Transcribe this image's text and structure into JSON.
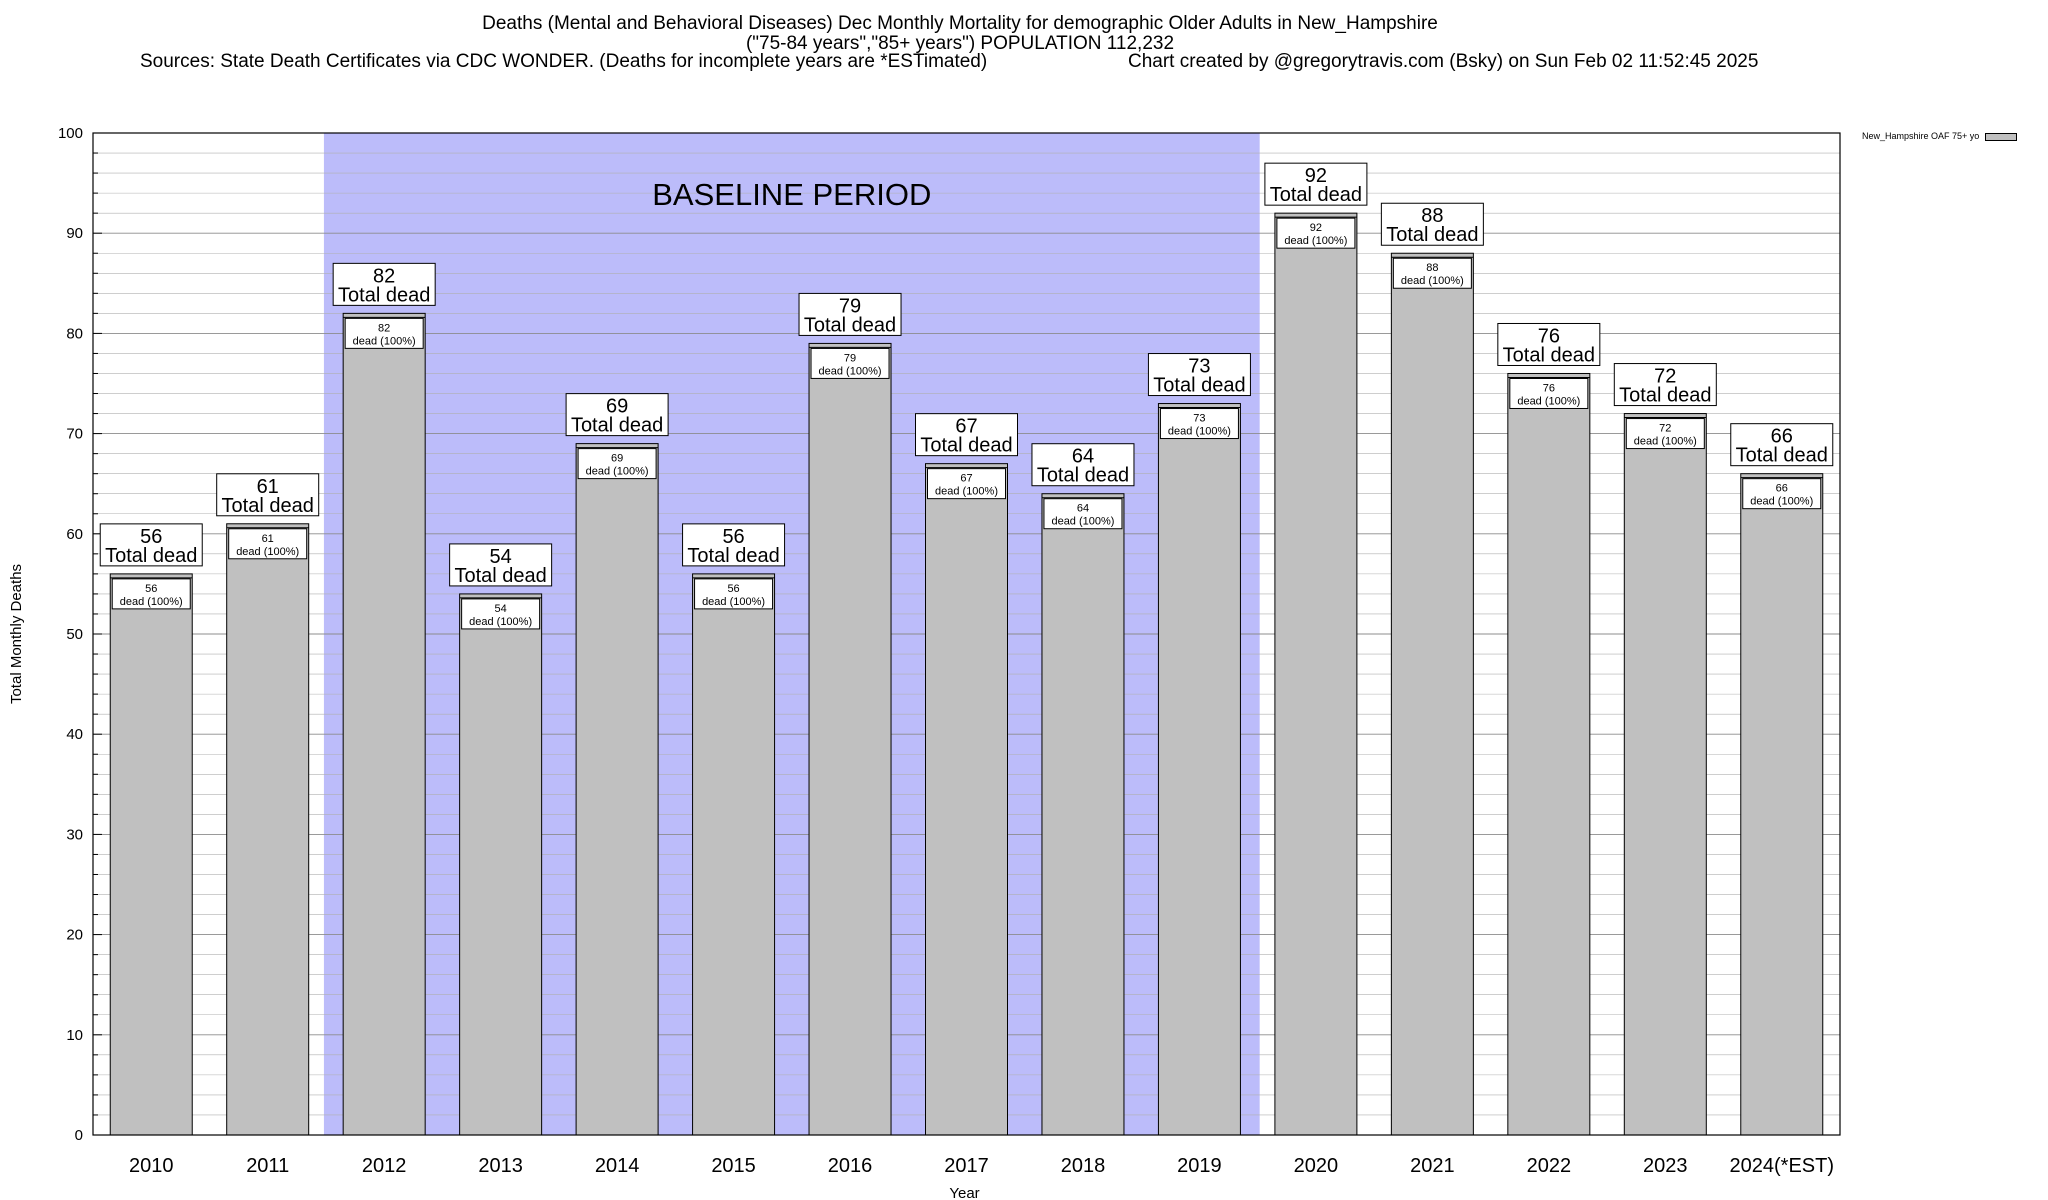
{
  "titles": {
    "line1": "Deaths (Mental and Behavioral Diseases) Dec Monthly Mortality for demographic Older Adults in New_Hampshire",
    "line2": "(\"75-84 years\",\"85+ years\") POPULATION 112,232",
    "sources": "Sources: State Death Certificates via CDC WONDER. (Deaths for incomplete years are *ESTimated)",
    "credit": "Chart created by @gregorytravis.com (Bsky) on Sun Feb 02 11:52:45 2025"
  },
  "legend": {
    "label": "New_Hampshire OAF 75+ yo"
  },
  "colors": {
    "bar": "#c0c0c0",
    "baseline": "#bcbcfa",
    "grid": "#b0b0b0"
  },
  "chart_data": {
    "type": "bar",
    "xlabel": "Year",
    "ylabel": "Total Monthly Deaths",
    "ylim": [
      0,
      100
    ],
    "yticks": [
      0,
      10,
      20,
      30,
      40,
      50,
      60,
      70,
      80,
      90,
      100
    ],
    "grid": true,
    "legend_position": "top-right",
    "categories": [
      "2010",
      "2011",
      "2012",
      "2013",
      "2014",
      "2015",
      "2016",
      "2017",
      "2018",
      "2019",
      "2020",
      "2021",
      "2022",
      "2023",
      "2024(*EST)"
    ],
    "series": [
      {
        "name": "New_Hampshire OAF 75+ yo",
        "values": [
          56,
          61,
          82,
          54,
          69,
          56,
          79,
          67,
          64,
          73,
          92,
          88,
          76,
          72,
          66
        ]
      }
    ],
    "total_label": "Total dead",
    "inner_label": "dead (100%)",
    "baseline": {
      "label": "BASELINE PERIOD",
      "from": "2012",
      "to": "2019"
    }
  }
}
